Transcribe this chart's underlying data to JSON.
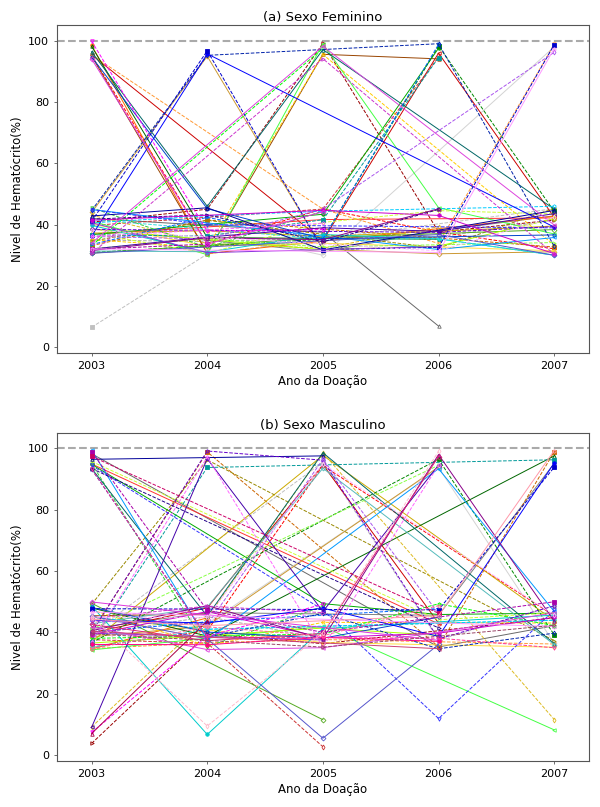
{
  "title_a": "(a) Sexo Feminino",
  "title_b": "(b) Sexo Masculino",
  "xlabel": "Ano da Doação",
  "ylabel": "Nivel de Hematócrito(%)",
  "xlim": [
    2002.7,
    2007.3
  ],
  "ylim": [
    -2,
    105
  ],
  "yticks": [
    0,
    20,
    40,
    60,
    80,
    100
  ],
  "xticks": [
    2003,
    2004,
    2005,
    2006,
    2007
  ],
  "background_color": "#ffffff",
  "panel_bg": "#ffffff",
  "seed_female": 7,
  "seed_male": 13,
  "n_female": 60,
  "n_male": 70,
  "lw": 0.7,
  "ms": 2.5
}
